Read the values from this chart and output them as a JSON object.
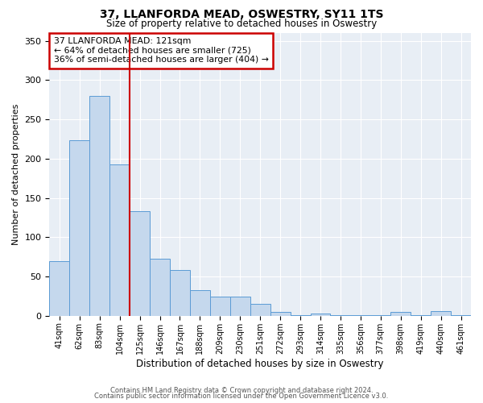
{
  "title": "37, LLANFORDA MEAD, OSWESTRY, SY11 1TS",
  "subtitle": "Size of property relative to detached houses in Oswestry",
  "xlabel": "Distribution of detached houses by size in Oswestry",
  "ylabel": "Number of detached properties",
  "bar_labels": [
    "41sqm",
    "62sqm",
    "83sqm",
    "104sqm",
    "125sqm",
    "146sqm",
    "167sqm",
    "188sqm",
    "209sqm",
    "230sqm",
    "251sqm",
    "272sqm",
    "293sqm",
    "314sqm",
    "335sqm",
    "356sqm",
    "377sqm",
    "398sqm",
    "419sqm",
    "440sqm",
    "461sqm"
  ],
  "bar_values": [
    70,
    224,
    280,
    193,
    133,
    73,
    58,
    33,
    24,
    24,
    15,
    5,
    1,
    3,
    1,
    1,
    1,
    5,
    1,
    6,
    1
  ],
  "bar_color": "#c5d8ed",
  "bar_edge_color": "#5b9bd5",
  "vline_x": 3.5,
  "vline_color": "#cc0000",
  "annotation_title": "37 LLANFORDA MEAD: 121sqm",
  "annotation_line1": "← 64% of detached houses are smaller (725)",
  "annotation_line2": "36% of semi-detached houses are larger (404) →",
  "annotation_box_color": "#cc0000",
  "ylim": [
    0,
    360
  ],
  "yticks": [
    0,
    50,
    100,
    150,
    200,
    250,
    300,
    350
  ],
  "background_color": "#e8eef5",
  "footer_line1": "Contains HM Land Registry data © Crown copyright and database right 2024.",
  "footer_line2": "Contains public sector information licensed under the Open Government Licence v3.0."
}
